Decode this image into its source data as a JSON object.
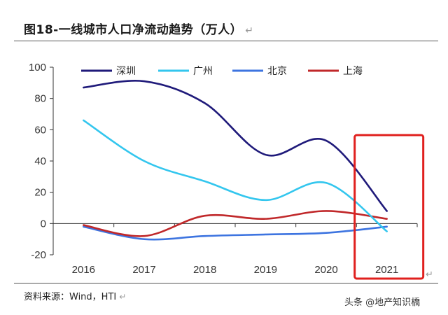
{
  "title": "图18-一线城市人口净流动趋势（万人）",
  "title_mark": "↵",
  "source": "资料来源：Wind，HTI",
  "source_mark": "↵",
  "corner_mark": "↵",
  "watermark": "头条 @地产知识橋",
  "chart_data": {
    "type": "line",
    "x": [
      2016,
      2017,
      2018,
      2019,
      2020,
      2021
    ],
    "categories": [
      "2016",
      "2017",
      "2018",
      "2019",
      "2020",
      "2021"
    ],
    "ylim": [
      -20,
      100
    ],
    "yticks": [
      100,
      80,
      60,
      40,
      20,
      0,
      -20
    ],
    "series": [
      {
        "name": "深圳",
        "color": "#1f1a7a",
        "values": [
          87,
          91,
          77,
          44,
          53,
          8
        ]
      },
      {
        "name": "广州",
        "color": "#33c6ee",
        "values": [
          66,
          40,
          27,
          15,
          26,
          -5
        ]
      },
      {
        "name": "北京",
        "color": "#3d74e0",
        "values": [
          -2,
          -10,
          -8,
          -7,
          -6,
          -2
        ]
      },
      {
        "name": "上海",
        "color": "#c0282a",
        "values": [
          -1,
          -8,
          5,
          3,
          8,
          3
        ]
      }
    ],
    "highlight": {
      "category": "2021",
      "color": "#e0201e"
    },
    "legend_position": "top",
    "grid": false
  }
}
